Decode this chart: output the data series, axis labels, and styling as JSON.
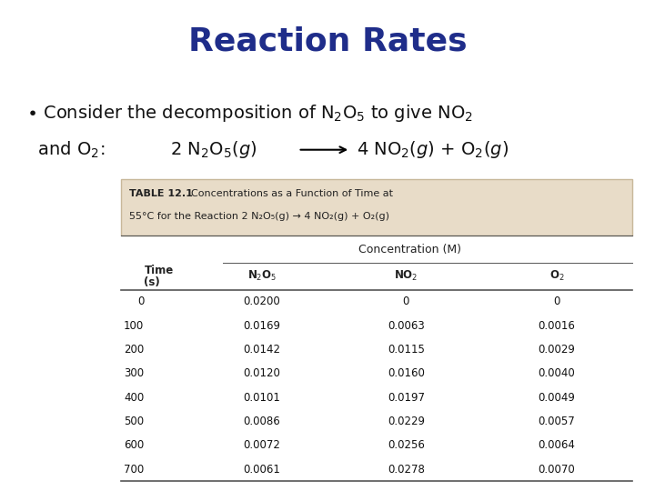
{
  "title": "Reaction Rates",
  "title_color": "#1f2d8a",
  "title_fontsize": 26,
  "bg_color": "#ffffff",
  "table_header_bg": "#e8dcc8",
  "table_header_border": "#c8b89a",
  "table_caption_bold": "TABLE 12.1",
  "table_caption_rest": "  Concentrations as a Function of Time at",
  "table_caption_line2": "55°C for the Reaction 2 N₂O₅(g) → 4 NO₂(g) + O₂(g)",
  "group_header": "Concentration (M)",
  "time_values": [
    "0",
    "100",
    "200",
    "300",
    "400",
    "500",
    "600",
    "700"
  ],
  "n2o5_values": [
    "0.0200",
    "0.0169",
    "0.0142",
    "0.0120",
    "0.0101",
    "0.0086",
    "0.0072",
    "0.0061"
  ],
  "no2_values": [
    "0",
    "0.0063",
    "0.0115",
    "0.0160",
    "0.0197",
    "0.0229",
    "0.0256",
    "0.0278"
  ],
  "o2_values": [
    "0",
    "0.0016",
    "0.0029",
    "0.0040",
    "0.0049",
    "0.0057",
    "0.0064",
    "0.0070"
  ],
  "body_text_color": "#111111",
  "table_text_color": "#111111",
  "table_bold_color": "#222222",
  "line_color": "#555555",
  "bullet_fontsize": 14,
  "table_fontsize": 8.5,
  "caption_fontsize": 8.0
}
